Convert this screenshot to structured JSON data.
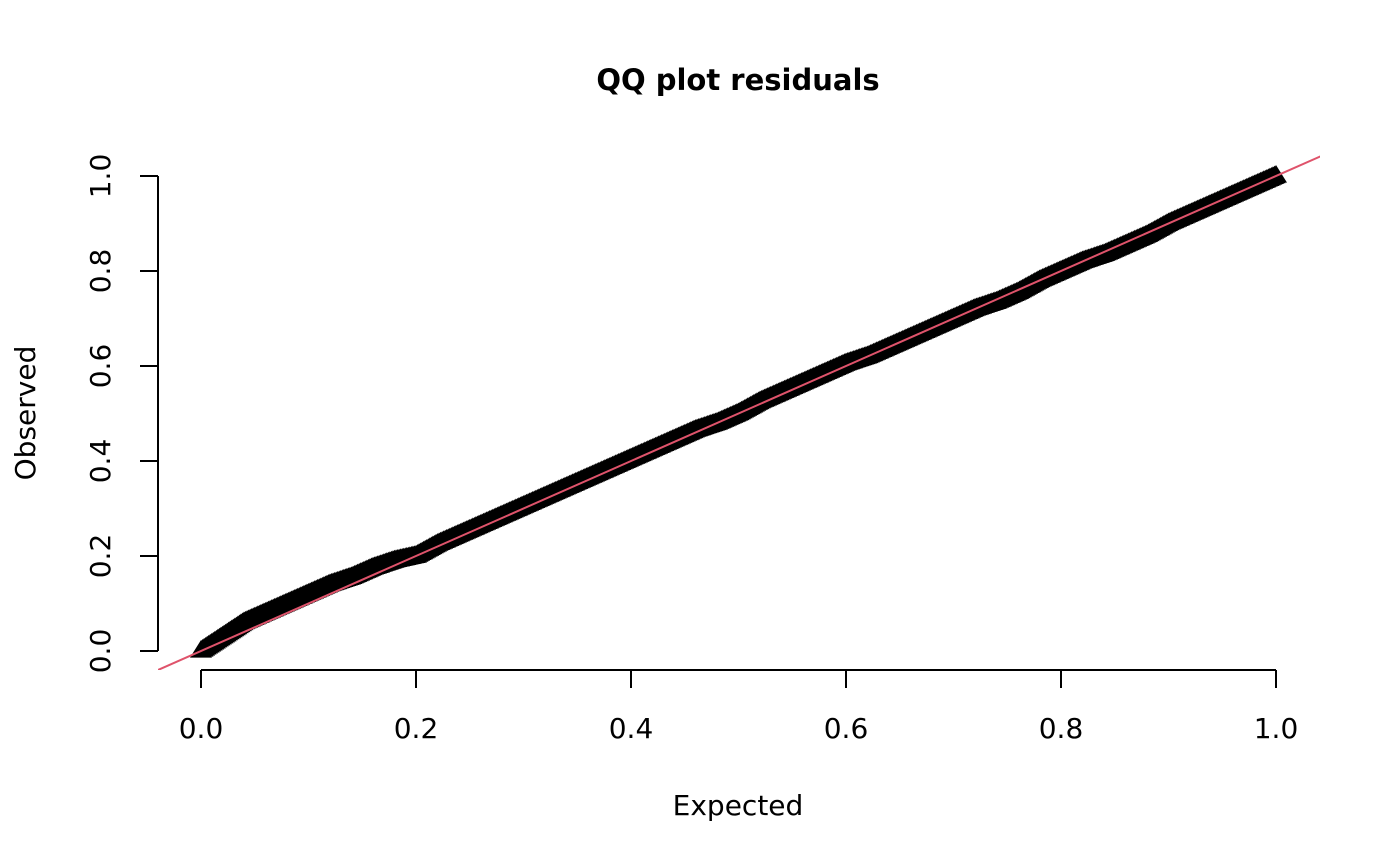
{
  "chart_data": {
    "type": "scatter",
    "title": "QQ plot residuals",
    "xlabel": "Expected",
    "ylabel": "Observed",
    "xlim": [
      0,
      1
    ],
    "ylim": [
      0,
      1
    ],
    "x_ticks": [
      "0.0",
      "0.2",
      "0.4",
      "0.6",
      "0.8",
      "1.0"
    ],
    "y_ticks": [
      "0.0",
      "0.2",
      "0.4",
      "0.6",
      "0.8",
      "1.0"
    ],
    "grid": false,
    "legend": "none",
    "marker": "filled-triangle",
    "point_color": "#000000",
    "reference_line": {
      "intercept": 0,
      "slope": 1,
      "color": "#DF536B"
    },
    "series": [
      {
        "x": [
          0.0,
          0.02,
          0.04,
          0.06,
          0.08,
          0.1,
          0.12,
          0.14,
          0.16,
          0.18,
          0.2,
          0.22,
          0.24,
          0.26,
          0.28,
          0.3,
          0.32,
          0.34,
          0.36,
          0.38,
          0.4,
          0.42,
          0.44,
          0.46,
          0.48,
          0.5,
          0.52,
          0.54,
          0.56,
          0.58,
          0.6,
          0.62,
          0.64,
          0.66,
          0.68,
          0.7,
          0.72,
          0.74,
          0.76,
          0.78,
          0.8,
          0.82,
          0.84,
          0.86,
          0.88,
          0.9,
          0.92,
          0.94,
          0.96,
          0.98,
          1.0
        ],
        "y": [
          0.0,
          0.03,
          0.06,
          0.08,
          0.1,
          0.12,
          0.14,
          0.155,
          0.175,
          0.19,
          0.2,
          0.225,
          0.245,
          0.265,
          0.285,
          0.305,
          0.325,
          0.345,
          0.365,
          0.385,
          0.405,
          0.425,
          0.445,
          0.465,
          0.48,
          0.5,
          0.525,
          0.545,
          0.565,
          0.585,
          0.605,
          0.62,
          0.64,
          0.66,
          0.68,
          0.7,
          0.72,
          0.735,
          0.755,
          0.78,
          0.8,
          0.82,
          0.835,
          0.855,
          0.875,
          0.9,
          0.92,
          0.94,
          0.96,
          0.98,
          1.0
        ]
      }
    ]
  }
}
